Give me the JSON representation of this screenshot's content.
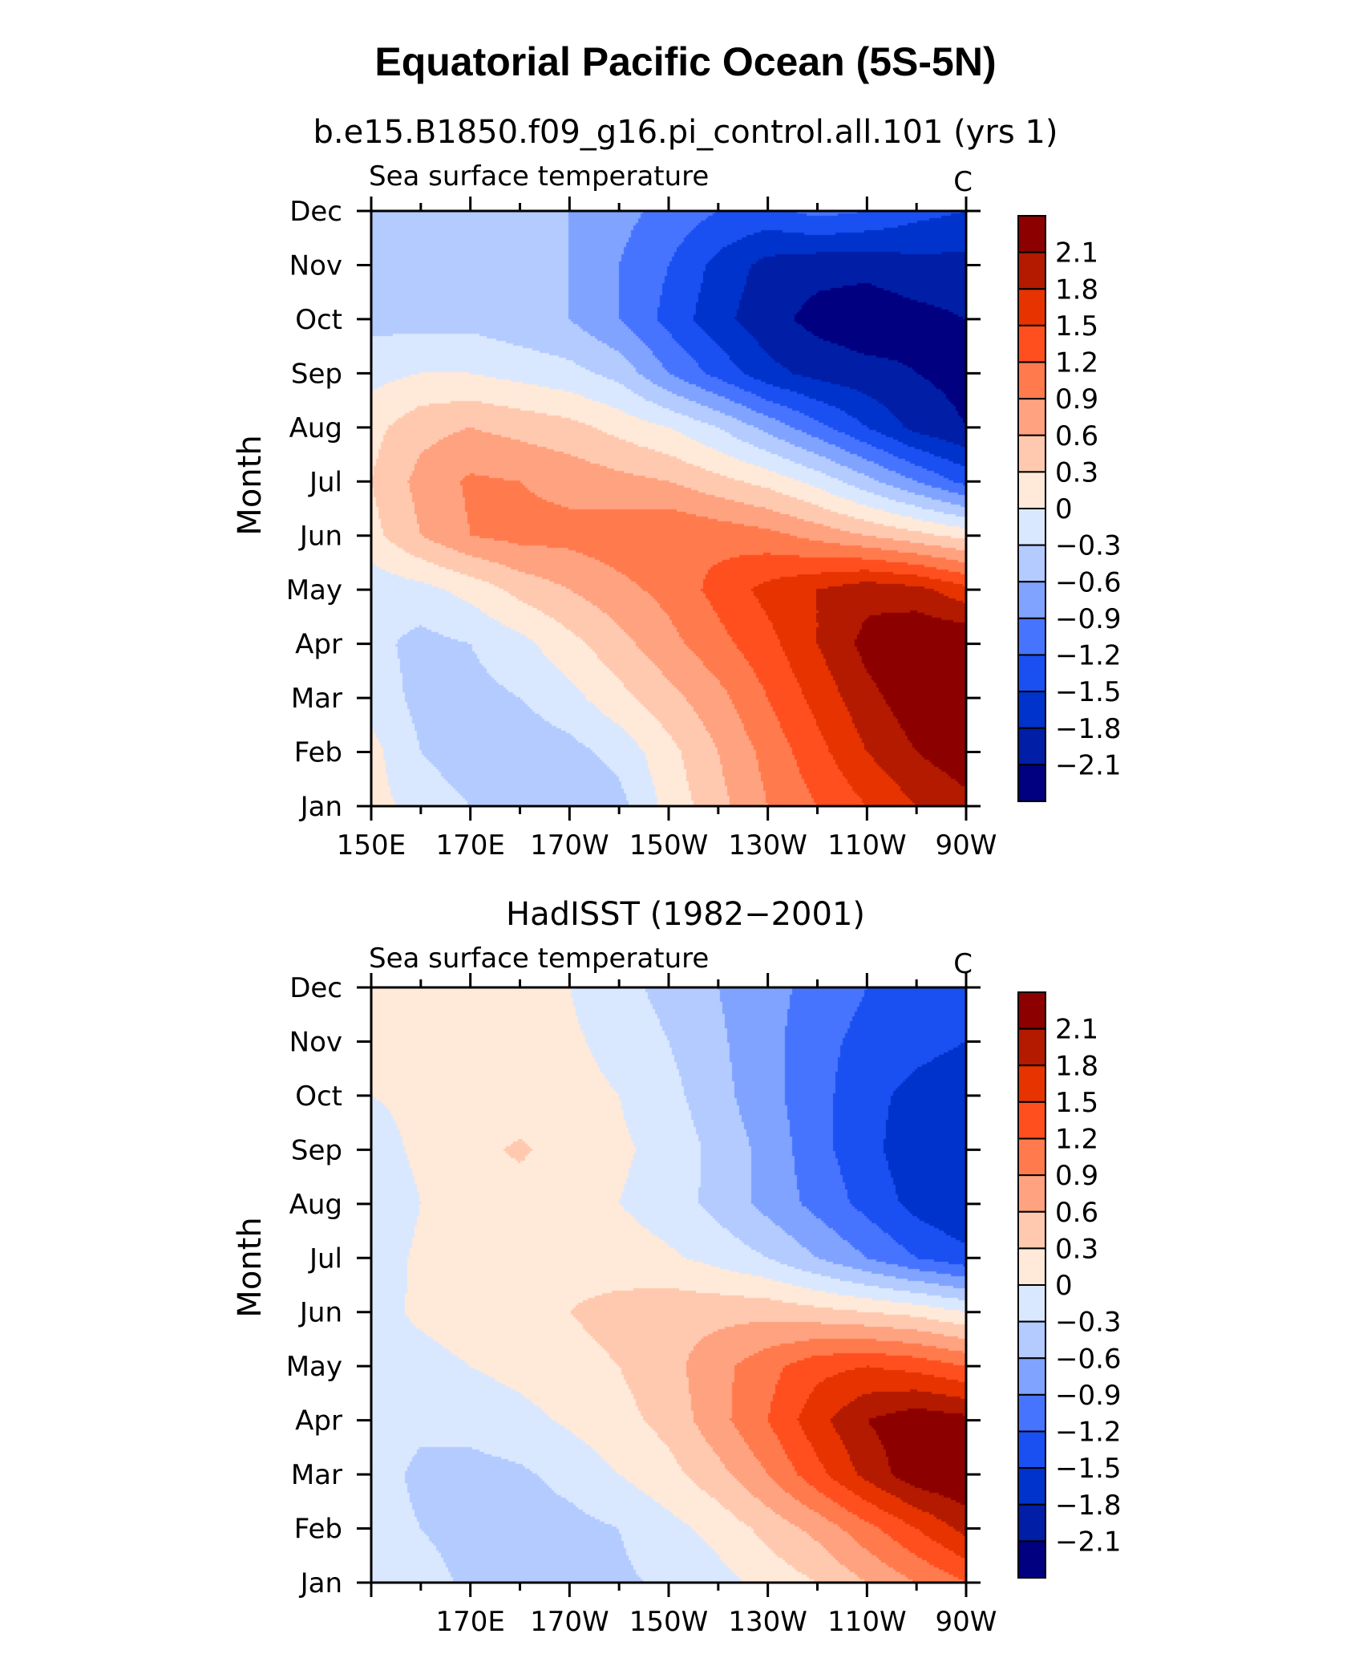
{
  "figure": {
    "title": "Equatorial Pacific Ocean (5S-5N)"
  },
  "colors": {
    "levels": [
      -2.4,
      -2.1,
      -1.8,
      -1.5,
      -1.2,
      -0.9,
      -0.6,
      -0.3,
      0,
      0.3,
      0.6,
      0.9,
      1.2,
      1.5,
      1.8,
      2.1,
      2.4
    ],
    "palette": [
      "#000080",
      "#001ea6",
      "#0033cc",
      "#1a4ff2",
      "#4774ff",
      "#80a3ff",
      "#b3cbff",
      "#d9e8ff",
      "#ffe9d9",
      "#ffc9b0",
      "#ffa27f",
      "#ff7a4d",
      "#ff4f1f",
      "#e63300",
      "#b31a00",
      "#8c0000"
    ]
  },
  "chart_data": [
    {
      "type": "heatmap",
      "title": "b.e15.B1850.f09_g16.pi_control.all.101 (yrs 1)",
      "left_string": "Sea surface temperature",
      "right_string": "C",
      "xlabel": "",
      "ylabel": "Month",
      "xlim": [
        150,
        270
      ],
      "x_ticks": [
        150,
        170,
        190,
        210,
        230,
        250,
        270
      ],
      "x_tick_labels": [
        "150E",
        "170E",
        "170W",
        "150W",
        "130W",
        "110W",
        "90W"
      ],
      "y_ticks": [
        "Jan",
        "Feb",
        "Mar",
        "Apr",
        "May",
        "Jun",
        "Jul",
        "Aug",
        "Sep",
        "Oct",
        "Nov",
        "Dec"
      ],
      "colorbar_labels": [
        "2.1",
        "1.8",
        "1.5",
        "1.2",
        "0.9",
        "0.6",
        "0.3",
        "0",
        "−0.3",
        "−0.6",
        "−0.9",
        "−1.2",
        "−1.5",
        "−1.8",
        "−2.1"
      ],
      "x": [
        150,
        160,
        170,
        180,
        190,
        200,
        210,
        220,
        230,
        240,
        250,
        260,
        270
      ],
      "y": [
        "Jan",
        "Feb",
        "Mar",
        "Apr",
        "May",
        "Jun",
        "Jul",
        "Aug",
        "Sep",
        "Oct",
        "Nov",
        "Dec"
      ],
      "values": [
        [
          0.1,
          -0.1,
          -0.3,
          -0.5,
          -0.6,
          -0.4,
          0.1,
          0.5,
          0.9,
          1.2,
          1.5,
          1.8,
          2.0
        ],
        [
          0.1,
          -0.3,
          -0.5,
          -0.5,
          -0.4,
          -0.2,
          0.2,
          0.6,
          1.0,
          1.4,
          1.8,
          2.1,
          2.3
        ],
        [
          -0.1,
          -0.4,
          -0.4,
          -0.3,
          -0.1,
          0.2,
          0.5,
          0.8,
          1.2,
          1.6,
          2.0,
          2.3,
          2.4
        ],
        [
          -0.2,
          -0.4,
          -0.3,
          -0.1,
          0.2,
          0.5,
          0.8,
          1.1,
          1.4,
          1.8,
          2.2,
          2.4,
          2.4
        ],
        [
          -0.2,
          -0.1,
          0.1,
          0.4,
          0.6,
          0.8,
          1.0,
          1.3,
          1.6,
          1.8,
          2.0,
          1.9,
          1.6
        ],
        [
          0.2,
          0.6,
          0.9,
          1.0,
          1.0,
          1.1,
          1.2,
          1.1,
          1.0,
          0.8,
          0.6,
          0.4,
          0.2
        ],
        [
          0.3,
          0.7,
          0.95,
          0.9,
          0.8,
          0.7,
          0.6,
          0.4,
          0.2,
          -0.1,
          -0.5,
          -0.9,
          -1.3
        ],
        [
          0.2,
          0.5,
          0.6,
          0.5,
          0.4,
          0.2,
          0.0,
          -0.3,
          -0.7,
          -1.1,
          -1.5,
          -1.9,
          -2.1
        ],
        [
          -0.1,
          0.0,
          0.0,
          -0.1,
          -0.2,
          -0.4,
          -0.9,
          -1.3,
          -1.7,
          -1.9,
          -2.0,
          -2.1,
          -2.2
        ],
        [
          -0.4,
          -0.4,
          -0.4,
          -0.5,
          -0.6,
          -0.9,
          -1.3,
          -1.7,
          -2.0,
          -2.2,
          -2.3,
          -2.2,
          -2.1
        ],
        [
          -0.5,
          -0.5,
          -0.5,
          -0.5,
          -0.6,
          -0.9,
          -1.2,
          -1.6,
          -1.9,
          -2.0,
          -2.0,
          -1.9,
          -1.9
        ],
        [
          -0.5,
          -0.5,
          -0.5,
          -0.5,
          -0.6,
          -0.8,
          -1.0,
          -1.2,
          -1.3,
          -1.1,
          -1.2,
          -1.4,
          -1.5
        ]
      ]
    },
    {
      "type": "heatmap",
      "title": "HadISST (1982−2001)",
      "left_string": "Sea surface temperature",
      "right_string": "C",
      "xlabel": "",
      "ylabel": "Month",
      "xlim": [
        150,
        270
      ],
      "x_ticks": [
        170,
        190,
        210,
        230,
        250,
        270
      ],
      "x_tick_labels": [
        "170E",
        "170W",
        "150W",
        "130W",
        "110W",
        "90W"
      ],
      "y_ticks": [
        "Jan",
        "Feb",
        "Mar",
        "Apr",
        "May",
        "Jun",
        "Jul",
        "Aug",
        "Sep",
        "Oct",
        "Nov",
        "Dec"
      ],
      "colorbar_labels": [
        "2.1",
        "1.8",
        "1.5",
        "1.2",
        "0.9",
        "0.6",
        "0.3",
        "0",
        "−0.3",
        "−0.6",
        "−0.9",
        "−1.2",
        "−1.5",
        "−1.8",
        "−2.1"
      ],
      "x": [
        150,
        160,
        170,
        180,
        190,
        200,
        210,
        220,
        230,
        240,
        250,
        260,
        270
      ],
      "y": [
        "Jan",
        "Feb",
        "Mar",
        "Apr",
        "May",
        "Jun",
        "Jul",
        "Aug",
        "Sep",
        "Oct",
        "Nov",
        "Dec"
      ],
      "values": [
        [
          -0.15,
          -0.2,
          -0.35,
          -0.4,
          -0.4,
          -0.35,
          -0.25,
          -0.1,
          0.1,
          0.3,
          0.6,
          0.9,
          1.2
        ],
        [
          -0.2,
          -0.3,
          -0.4,
          -0.45,
          -0.4,
          -0.3,
          -0.1,
          0.1,
          0.4,
          0.7,
          1.1,
          1.5,
          1.9
        ],
        [
          -0.2,
          -0.35,
          -0.4,
          -0.35,
          -0.2,
          0.0,
          0.2,
          0.5,
          0.9,
          1.4,
          1.9,
          2.3,
          2.4
        ],
        [
          -0.2,
          -0.25,
          -0.2,
          -0.1,
          0.05,
          0.2,
          0.4,
          0.8,
          1.2,
          1.7,
          2.1,
          2.3,
          2.2
        ],
        [
          -0.1,
          -0.1,
          0.0,
          0.1,
          0.2,
          0.3,
          0.5,
          0.8,
          1.1,
          1.4,
          1.5,
          1.4,
          1.2
        ],
        [
          -0.1,
          0.05,
          0.15,
          0.2,
          0.3,
          0.4,
          0.5,
          0.5,
          0.5,
          0.4,
          0.3,
          0.2,
          0.0
        ],
        [
          -0.15,
          0.05,
          0.1,
          0.15,
          0.2,
          0.15,
          0.05,
          -0.1,
          -0.3,
          -0.6,
          -0.9,
          -1.2,
          -1.4
        ],
        [
          -0.2,
          0.0,
          0.1,
          0.15,
          0.1,
          0.0,
          -0.15,
          -0.4,
          -0.7,
          -1.0,
          -1.3,
          -1.6,
          -1.8
        ],
        [
          -0.1,
          0.05,
          0.2,
          0.35,
          0.15,
          0.05,
          -0.1,
          -0.4,
          -0.7,
          -1.1,
          -1.4,
          -1.7,
          -1.8
        ],
        [
          0.0,
          0.05,
          0.1,
          0.1,
          0.1,
          0.0,
          -0.2,
          -0.5,
          -0.8,
          -1.1,
          -1.4,
          -1.6,
          -1.7
        ],
        [
          0.0,
          0.05,
          0.1,
          0.1,
          0.05,
          -0.1,
          -0.3,
          -0.55,
          -0.8,
          -1.1,
          -1.3,
          -1.4,
          -1.5
        ],
        [
          0.05,
          0.05,
          0.1,
          0.1,
          0.0,
          -0.2,
          -0.4,
          -0.6,
          -0.8,
          -1.0,
          -1.2,
          -1.3,
          -1.2
        ]
      ]
    }
  ]
}
